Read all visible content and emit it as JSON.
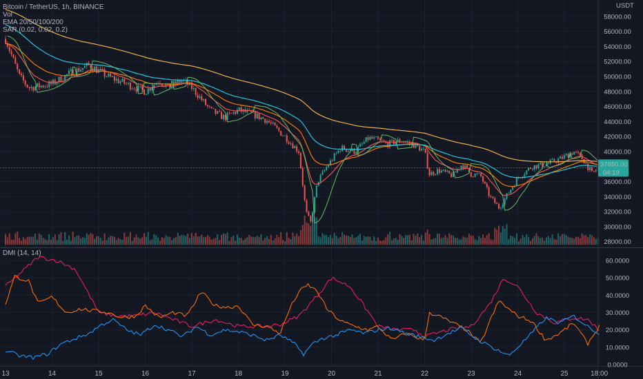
{
  "header": {
    "symbol": "Bitcoin / TetherUS, 1h, BINANCE",
    "vol_label": "Vol",
    "ema_label": "EMA 20/50/100/200",
    "sar_label": "SAR (0.02, 0.02, 0.2)",
    "currency": "USDT"
  },
  "last_price": {
    "price": "37850.00",
    "countdown": "04:19"
  },
  "dmi": {
    "label": "DMI (14, 14)"
  },
  "colors": {
    "background": "#131722",
    "up": "#26a69a",
    "down": "#ef5350",
    "ema20": "#ef5350",
    "ema50": "#f57c00",
    "ema100": "#26c6da",
    "ema200": "#f0b24a",
    "sar": "#66bb6a",
    "dmi_plus": "#2196f3",
    "dmi_minus": "#e91e63",
    "adx": "#ff6d00",
    "last_price_tag": "#26a69a"
  },
  "chart_data": [
    {
      "type": "candlestick",
      "symbol": "Bitcoin / TetherUS, 1h, BINANCE",
      "y_unit": "USDT",
      "ylim": [
        27600,
        59000
      ],
      "price_ticks": [
        "58000.00",
        "56000.00",
        "54000.00",
        "52000.00",
        "50000.00",
        "48000.00",
        "46000.00",
        "44000.00",
        "42000.00",
        "40000.00",
        "36000.00",
        "34000.00",
        "32000.00",
        "30000.00",
        "28000.00"
      ],
      "x_ticks": [
        "13",
        "14",
        "15",
        "16",
        "17",
        "18",
        "19",
        "20",
        "21",
        "22",
        "23",
        "24",
        "25",
        "18:00"
      ],
      "x_tick_days": [
        13,
        14,
        15,
        16,
        17,
        18,
        19,
        20,
        21,
        22,
        23,
        24,
        25,
        25.75
      ],
      "last_price": 37850,
      "path_keypoints": {
        "day": [
          13.0,
          13.3,
          13.5,
          14.0,
          14.4,
          14.8,
          15.2,
          15.6,
          16.0,
          16.3,
          16.5,
          16.8,
          17.0,
          17.4,
          17.7,
          18.0,
          18.3,
          18.6,
          19.0,
          19.3,
          19.45,
          19.55,
          19.7,
          19.9,
          20.2,
          20.5,
          20.8,
          21.0,
          21.2,
          21.5,
          21.8,
          22.0,
          22.1,
          22.3,
          22.6,
          22.8,
          23.0,
          23.2,
          23.4,
          23.6,
          23.8,
          24.0,
          24.3,
          24.6,
          24.9,
          25.2,
          25.4,
          25.6,
          25.72
        ],
        "close": [
          55000,
          50000,
          48500,
          49000,
          50500,
          51500,
          50000,
          49000,
          48000,
          49500,
          48500,
          49500,
          48500,
          45500,
          44500,
          45500,
          45000,
          44200,
          42000,
          40000,
          32000,
          30500,
          36000,
          38000,
          40500,
          40000,
          41800,
          41500,
          41000,
          41500,
          40800,
          40000,
          37000,
          37500,
          36800,
          38300,
          37000,
          36800,
          34000,
          32500,
          34500,
          36500,
          38000,
          38300,
          39000,
          40000,
          39000,
          37000,
          37850
        ]
      },
      "overlays": [
        "EMA 20",
        "EMA 50",
        "EMA 100",
        "EMA 200",
        "SAR (0.02, 0.02, 0.2)",
        "Vol"
      ]
    },
    {
      "type": "line",
      "title": "DMI (14, 14)",
      "ylim": [
        0,
        64
      ],
      "y_ticks": [
        "60.0000",
        "50.0000",
        "40.0000",
        "30.0000",
        "20.0000",
        "10.0000",
        "0.0000"
      ],
      "series": [
        {
          "key": "minus",
          "days": [
            13.0,
            13.7,
            14.1,
            14.5,
            14.8,
            15.0,
            15.4,
            15.8,
            16.2,
            16.6,
            17.0,
            17.5,
            18.0,
            18.5,
            18.9,
            19.3,
            19.7,
            20.0,
            20.4,
            20.8,
            21.0,
            21.4,
            21.8,
            22.0,
            22.5,
            23.0,
            23.4,
            23.7,
            24.0,
            24.4,
            24.8,
            25.2,
            25.5,
            25.75
          ],
          "values": [
            45,
            62,
            60,
            55,
            40,
            30,
            28,
            28,
            30,
            26,
            22,
            26,
            22,
            22,
            23,
            28,
            40,
            50,
            45,
            30,
            22,
            20,
            20,
            16,
            20,
            22,
            35,
            50,
            45,
            30,
            24,
            27,
            26,
            20
          ]
        },
        {
          "key": "adx",
          "days": [
            13.0,
            13.2,
            13.5,
            13.7,
            14.0,
            14.3,
            14.6,
            14.9,
            15.2,
            15.5,
            15.8,
            16.0,
            16.3,
            16.6,
            16.9,
            17.2,
            17.5,
            17.8,
            18.0,
            18.3,
            18.6,
            18.9,
            19.1,
            19.3,
            19.5,
            19.7,
            19.9,
            20.2,
            20.5,
            20.8,
            21.0,
            21.3,
            21.6,
            21.8,
            22.0,
            22.1,
            22.3,
            22.6,
            22.9,
            23.2,
            23.4,
            23.6,
            23.8,
            24.0,
            24.3,
            24.6,
            24.9,
            25.2,
            25.5,
            25.75
          ],
          "values": [
            35,
            51,
            48,
            35,
            39,
            30,
            32,
            31,
            30,
            27,
            28,
            34,
            27,
            30,
            28,
            42,
            34,
            33,
            34,
            23,
            22,
            18,
            32,
            42,
            46,
            42,
            32,
            25,
            22,
            20,
            22,
            14,
            18,
            16,
            14,
            30,
            28,
            24,
            20,
            12,
            25,
            37,
            32,
            28,
            25,
            14,
            18,
            24,
            12,
            22
          ]
        },
        {
          "key": "plus",
          "days": [
            13.0,
            13.3,
            13.6,
            13.9,
            14.2,
            14.5,
            14.8,
            15.0,
            15.3,
            15.6,
            15.9,
            16.2,
            16.5,
            16.8,
            17.1,
            17.4,
            17.7,
            18.0,
            18.3,
            18.6,
            18.9,
            19.2,
            19.4,
            19.6,
            19.8,
            20.1,
            20.4,
            20.7,
            21.0,
            21.3,
            21.6,
            21.9,
            22.2,
            22.5,
            22.8,
            23.1,
            23.3,
            23.6,
            23.8,
            24.0,
            24.3,
            24.6,
            24.9,
            25.2,
            25.5,
            25.75
          ],
          "values": [
            8,
            5,
            4,
            6,
            12,
            15,
            18,
            22,
            26,
            20,
            17,
            23,
            20,
            16,
            22,
            17,
            20,
            19,
            17,
            14,
            17,
            12,
            6,
            12,
            15,
            17,
            20,
            18,
            20,
            21,
            18,
            16,
            14,
            18,
            21,
            15,
            12,
            8,
            5,
            10,
            18,
            27,
            24,
            28,
            22,
            18
          ]
        }
      ]
    }
  ]
}
